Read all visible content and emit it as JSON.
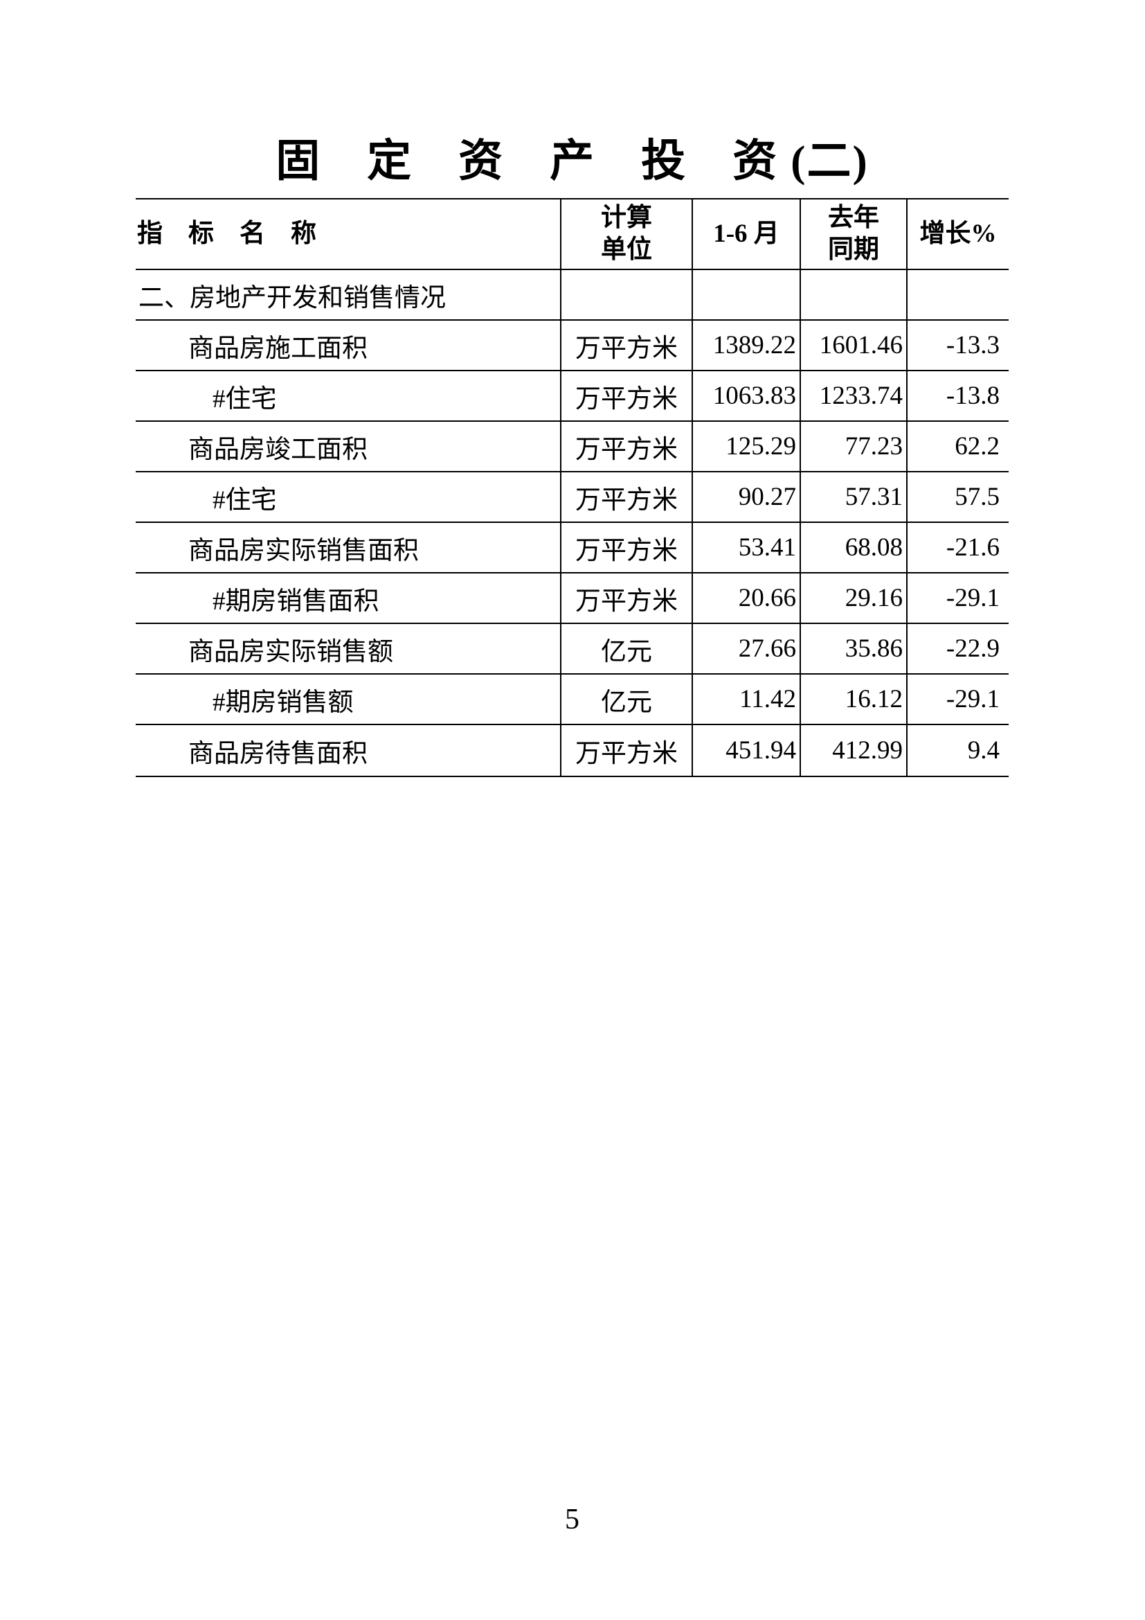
{
  "page": {
    "title": "固　定　资　产　投　资 (二)",
    "page_number": "5"
  },
  "table": {
    "headers": {
      "indicator": "指　标　名　称",
      "unit": "计算\n单位",
      "period": "1-6 月",
      "previous": "去年\n同期",
      "growth": "增长%"
    },
    "rows": [
      {
        "label": "二、房地产开发和销售情况",
        "unit": "",
        "current": "",
        "previous": "",
        "growth": ""
      },
      {
        "label": "商品房施工面积",
        "unit": "万平方米",
        "current": "1389.22",
        "previous": "1601.46",
        "growth": "-13.3"
      },
      {
        "label": "#住宅",
        "unit": "万平方米",
        "current": "1063.83",
        "previous": "1233.74",
        "growth": "-13.8"
      },
      {
        "label": "商品房竣工面积",
        "unit": "万平方米",
        "current": "125.29",
        "previous": "77.23",
        "growth": "62.2"
      },
      {
        "label": "#住宅",
        "unit": "万平方米",
        "current": "90.27",
        "previous": "57.31",
        "growth": "57.5"
      },
      {
        "label": "商品房实际销售面积",
        "unit": "万平方米",
        "current": "53.41",
        "previous": "68.08",
        "growth": "-21.6"
      },
      {
        "label": "#期房销售面积",
        "unit": "万平方米",
        "current": "20.66",
        "previous": "29.16",
        "growth": "-29.1"
      },
      {
        "label": "商品房实际销售额",
        "unit": "亿元",
        "current": "27.66",
        "previous": "35.86",
        "growth": "-22.9"
      },
      {
        "label": "#期房销售额",
        "unit": "亿元",
        "current": "11.42",
        "previous": "16.12",
        "growth": "-29.1"
      },
      {
        "label": "商品房待售面积",
        "unit": "万平方米",
        "current": "451.94",
        "previous": "412.99",
        "growth": "9.4"
      }
    ]
  }
}
